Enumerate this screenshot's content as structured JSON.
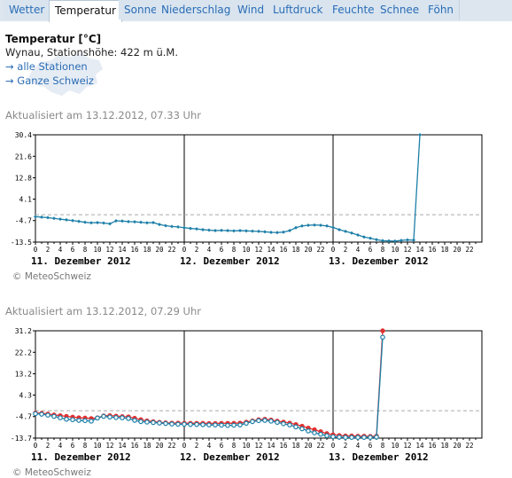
{
  "tabs": [
    {
      "label": "Wetter",
      "active": false
    },
    {
      "label": "Temperatur",
      "active": true
    },
    {
      "label": "Sonne",
      "active": false
    },
    {
      "label": "Niederschlag",
      "active": false
    },
    {
      "label": "Wind",
      "active": false
    },
    {
      "label": "Luftdruck",
      "active": false
    },
    {
      "label": "Feuchte",
      "active": false
    },
    {
      "label": "Schnee",
      "active": false
    },
    {
      "label": "Föhn",
      "active": false
    }
  ],
  "header": {
    "title": "Temperatur [°C]",
    "station": "Wynau, Stationshöhe: 422 m ü.M.",
    "link_all": "→ alle Stationen",
    "link_swiss": "→ Ganze Schweiz"
  },
  "colors": {
    "link": "#2a6db5",
    "series_blue": "#1d7fa8",
    "series_red": "#e03030",
    "map": "#e6ecf4"
  },
  "chart_data": [
    {
      "type": "line",
      "updated": "Aktualisiert am 13.12.2012, 07.33 Uhr",
      "copyright": "© MeteoSchweiz",
      "yticks": [
        "30.4",
        "21.6",
        "12.8",
        "4.1",
        "-4.7",
        "-13.5"
      ],
      "ylim": [
        -13.5,
        30.4
      ],
      "xticks": [
        "0",
        "2",
        "4",
        "6",
        "8",
        "10",
        "12",
        "14",
        "16",
        "18",
        "20",
        "22",
        "0",
        "2",
        "4",
        "6",
        "8",
        "10",
        "12",
        "14",
        "16",
        "18",
        "20",
        "22",
        "0",
        "2",
        "4",
        "6",
        "8",
        "10",
        "12",
        "14",
        "16",
        "18",
        "20",
        "22"
      ],
      "days": [
        "11. Dezember 2012",
        "12. Dezember 2012",
        "13. Dezember 2012"
      ],
      "x_hours_step": 1,
      "series": [
        {
          "values": [
            -3.1,
            -3.3,
            -3.5,
            -3.8,
            -4.1,
            -4.4,
            -4.7,
            -5.0,
            -5.4,
            -5.6,
            -5.5,
            -5.7,
            -6.0,
            -4.8,
            -4.9,
            -5.1,
            -5.2,
            -5.4,
            -5.6,
            -5.5,
            -6.3,
            -6.8,
            -7.1,
            -7.3,
            -7.6,
            -7.9,
            -8.1,
            -8.4,
            -8.6,
            -8.8,
            -8.7,
            -8.8,
            -8.9,
            -8.8,
            -8.9,
            -9.0,
            -9.1,
            -9.3,
            -9.5,
            -9.6,
            -9.4,
            -8.8,
            -7.6,
            -6.9,
            -6.6,
            -6.5,
            -6.6,
            -6.9,
            -7.5,
            -8.4,
            -9.1,
            -9.8,
            -10.6,
            -11.4,
            -11.9,
            -12.5,
            -12.9,
            -13.0,
            -13.1,
            -12.8,
            -12.6,
            -12.7,
            30.4
          ]
        }
      ]
    },
    {
      "type": "line",
      "updated": "Aktualisiert am 13.12.2012, 07.29 Uhr",
      "copyright": "© MeteoSchweiz",
      "yticks": [
        "31.2",
        "22.2",
        "13.2",
        "4.3",
        "-4.7",
        "-13.7"
      ],
      "ylim": [
        -13.7,
        31.2
      ],
      "xticks": [
        "0",
        "2",
        "4",
        "6",
        "8",
        "10",
        "12",
        "14",
        "16",
        "18",
        "20",
        "22",
        "0",
        "2",
        "4",
        "6",
        "8",
        "10",
        "12",
        "14",
        "16",
        "18",
        "20",
        "22",
        "0",
        "2",
        "4",
        "6",
        "8",
        "10",
        "12",
        "14",
        "16",
        "18",
        "20",
        "22"
      ],
      "days": [
        "11. Dezember 2012",
        "12. Dezember 2012",
        "13. Dezember 2012"
      ],
      "x_hours_step": 1,
      "series": [
        {
          "values": [
            -3.2,
            -3.3,
            -3.6,
            -4.0,
            -4.3,
            -4.6,
            -4.9,
            -5.2,
            -5.3,
            -5.5,
            -5.2,
            -4.4,
            -4.3,
            -4.5,
            -4.7,
            -4.8,
            -5.4,
            -6.0,
            -6.5,
            -6.8,
            -7.1,
            -7.3,
            -7.4,
            -7.4,
            -7.5,
            -7.5,
            -7.5,
            -7.5,
            -7.6,
            -7.6,
            -7.5,
            -7.5,
            -7.5,
            -7.4,
            -7.0,
            -6.5,
            -6.0,
            -5.8,
            -6.1,
            -6.6,
            -7.0,
            -7.4,
            -8.0,
            -8.7,
            -9.5,
            -10.2,
            -11.0,
            -11.8,
            -12.3,
            -12.6,
            -12.8,
            -12.8,
            -12.9,
            -12.9,
            -13.0,
            -12.9,
            31.2
          ],
          "color": "red"
        },
        {
          "values": [
            -3.5,
            -3.7,
            -4.1,
            -4.6,
            -5.2,
            -5.8,
            -6.0,
            -6.3,
            -6.4,
            -6.6,
            -5.3,
            -4.6,
            -4.9,
            -5.1,
            -5.2,
            -5.5,
            -6.3,
            -6.8,
            -7.0,
            -7.2,
            -7.4,
            -7.6,
            -7.8,
            -7.9,
            -7.9,
            -8.0,
            -8.0,
            -8.1,
            -8.2,
            -8.2,
            -8.3,
            -8.4,
            -8.3,
            -8.2,
            -7.5,
            -6.8,
            -6.4,
            -6.3,
            -6.6,
            -7.1,
            -7.7,
            -8.2,
            -9.0,
            -9.8,
            -10.7,
            -11.5,
            -12.1,
            -12.7,
            -13.1,
            -13.3,
            -13.4,
            -13.4,
            -13.4,
            -13.4,
            -13.4,
            -13.3,
            28.5
          ],
          "color": "blue"
        }
      ]
    }
  ]
}
